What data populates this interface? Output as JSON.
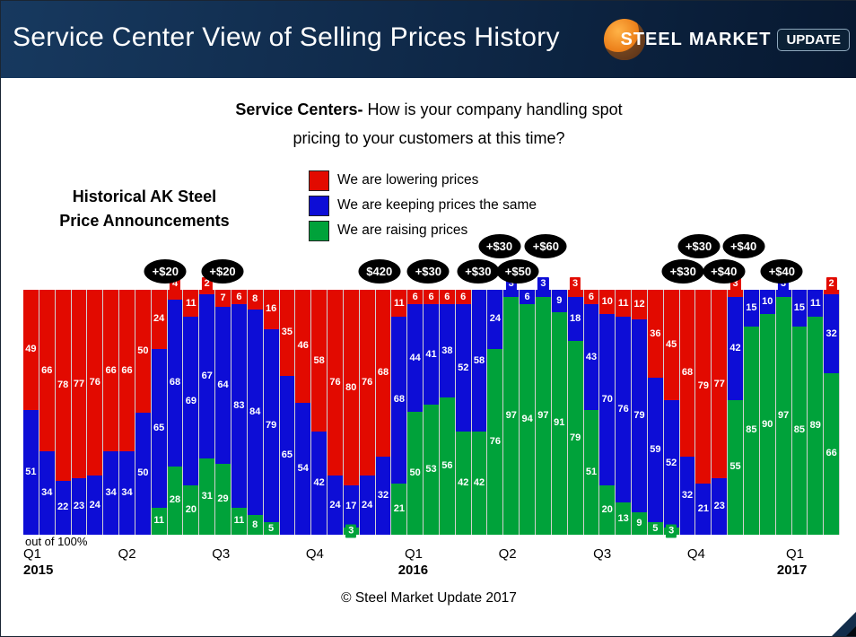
{
  "header": {
    "title": "Service Center View of Selling Prices History",
    "logo": {
      "steel": "STEEL",
      "market": "MARKET",
      "update": "UPDATE"
    }
  },
  "question": {
    "bold": "Service Centers-",
    "rest": " How is your company handling spot",
    "line2": "pricing to your customers at this time?"
  },
  "left_heading": {
    "line1": "Historical AK Steel",
    "line2": "Price Announcements"
  },
  "legend": {
    "items": [
      {
        "key": "lowering",
        "label": "We are lowering prices",
        "color": "#e20a00"
      },
      {
        "key": "keeping",
        "label": "We are keeping prices the same",
        "color": "#0d0dd6"
      },
      {
        "key": "raising",
        "label": "We are raising prices",
        "color": "#00a23a"
      }
    ]
  },
  "axis": {
    "out_of_label": "out of 100%"
  },
  "footer": {
    "copyright": "© Steel Market Update 2017"
  },
  "chart_data": {
    "type": "bar",
    "stacked_percent": true,
    "title": "Service Centers- How is your company handling spot pricing to your customers at this time?",
    "ylim": [
      0,
      100
    ],
    "unit": "%",
    "series": [
      {
        "key": "lowering",
        "name": "We are lowering prices",
        "color": "#e20a00",
        "values": [
          49,
          66,
          78,
          77,
          76,
          66,
          66,
          50,
          24,
          4,
          11,
          2,
          7,
          6,
          8,
          16,
          35,
          46,
          58,
          76,
          80,
          76,
          68,
          11,
          6,
          6,
          6,
          6,
          0,
          0,
          0,
          0,
          0,
          0,
          3,
          6,
          10,
          11,
          12,
          36,
          45,
          68,
          79,
          77,
          3,
          0,
          0,
          0,
          0,
          0,
          2
        ]
      },
      {
        "key": "keeping",
        "name": "We are keeping prices the same",
        "color": "#0d0dd6",
        "values": [
          51,
          34,
          22,
          23,
          24,
          34,
          34,
          50,
          65,
          68,
          69,
          67,
          64,
          83,
          84,
          79,
          65,
          54,
          42,
          24,
          17,
          24,
          32,
          68,
          44,
          41,
          38,
          52,
          58,
          24,
          3,
          6,
          3,
          9,
          18,
          43,
          70,
          76,
          79,
          59,
          52,
          32,
          21,
          23,
          42,
          15,
          10,
          3,
          15,
          11,
          32
        ]
      },
      {
        "key": "raising",
        "name": "We are raising prices",
        "color": "#00a23a",
        "values": [
          0,
          0,
          0,
          0,
          0,
          0,
          0,
          0,
          11,
          28,
          20,
          31,
          29,
          11,
          8,
          5,
          0,
          0,
          0,
          0,
          3,
          0,
          0,
          21,
          50,
          53,
          56,
          42,
          42,
          76,
          97,
          94,
          97,
          91,
          79,
          51,
          20,
          13,
          9,
          5,
          3,
          0,
          0,
          0,
          55,
          85,
          90,
          97,
          85,
          89,
          66
        ]
      }
    ],
    "x_axis": {
      "quarters": [
        {
          "label": "Q1",
          "x_pct": 0
        },
        {
          "label": "Q2",
          "x_pct": 11.6
        },
        {
          "label": "Q3",
          "x_pct": 23.1
        },
        {
          "label": "Q4",
          "x_pct": 34.6
        },
        {
          "label": "Q1",
          "x_pct": 46.7
        },
        {
          "label": "Q2",
          "x_pct": 58.2
        },
        {
          "label": "Q3",
          "x_pct": 69.8
        },
        {
          "label": "Q4",
          "x_pct": 81.3
        },
        {
          "label": "Q1",
          "x_pct": 93.4
        }
      ],
      "years": [
        {
          "label": "2015",
          "x_pct": 0
        },
        {
          "label": "2016",
          "x_pct": 45.9
        },
        {
          "label": "2017",
          "x_pct": 92.3
        }
      ]
    },
    "annotations": [
      {
        "label": "+$20",
        "x_pct": 17.4,
        "row": 1
      },
      {
        "label": "+$20",
        "x_pct": 24.4,
        "row": 1
      },
      {
        "label": "$420",
        "x_pct": 43.6,
        "row": 1
      },
      {
        "label": "+$30",
        "x_pct": 49.6,
        "row": 1
      },
      {
        "label": "+$30",
        "x_pct": 55.7,
        "row": 1
      },
      {
        "label": "+$30",
        "x_pct": 58.3,
        "row": 2
      },
      {
        "label": "+$50",
        "x_pct": 60.6,
        "row": 1
      },
      {
        "label": "+$60",
        "x_pct": 64.0,
        "row": 2
      },
      {
        "label": "+$30",
        "x_pct": 80.8,
        "row": 1
      },
      {
        "label": "+$30",
        "x_pct": 82.7,
        "row": 2
      },
      {
        "label": "+$40",
        "x_pct": 85.8,
        "row": 1
      },
      {
        "label": "+$40",
        "x_pct": 88.2,
        "row": 2
      },
      {
        "label": "+$40",
        "x_pct": 92.9,
        "row": 1
      }
    ]
  }
}
